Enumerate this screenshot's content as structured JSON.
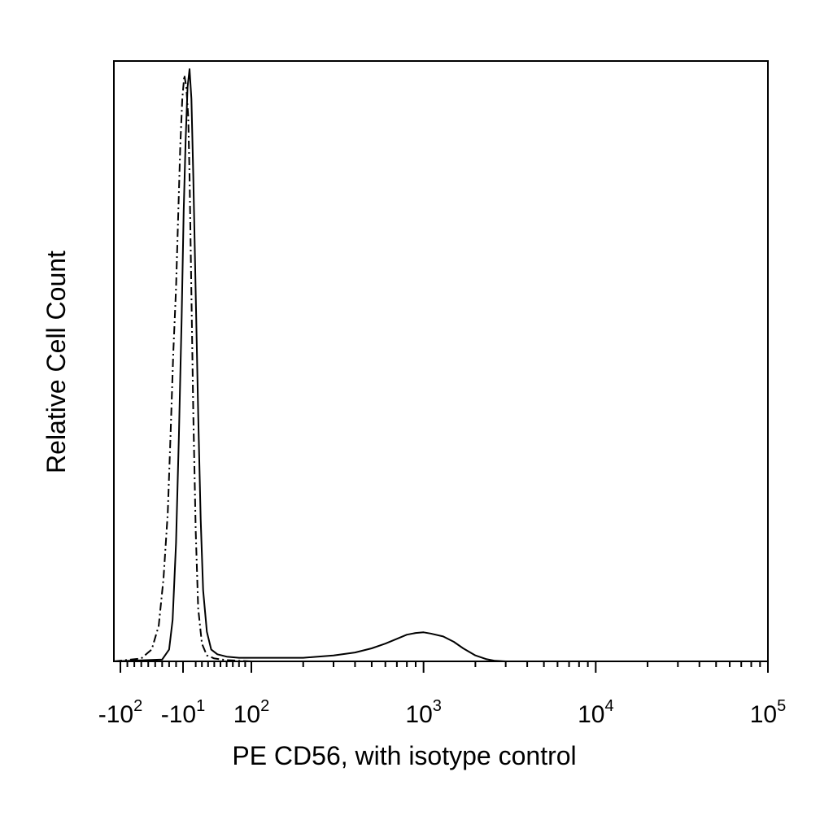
{
  "chart_data": {
    "type": "line",
    "title": "",
    "xlabel": "PE CD56, with isotype control",
    "ylabel": "Relative Cell Count",
    "x_scale": "biexponential",
    "xlim": [
      -150,
      100000
    ],
    "ylim": [
      0,
      1
    ],
    "grid": false,
    "x_tick_labels": [
      {
        "value": -100,
        "base": "-10",
        "exp": "2"
      },
      {
        "value": -10,
        "base": "-10",
        "exp": "1"
      },
      {
        "value": 100,
        "base": "10",
        "exp": "2"
      },
      {
        "value": 1000,
        "base": "10",
        "exp": "3"
      },
      {
        "value": 10000,
        "base": "10",
        "exp": "4"
      },
      {
        "value": 100000,
        "base": "10",
        "exp": "5"
      }
    ],
    "series": [
      {
        "style": "dash-dot",
        "x": [
          -150,
          -70,
          -55,
          -45,
          -38,
          -32,
          -28,
          -24,
          -20,
          -17,
          -14,
          -11,
          -8,
          -5,
          -2,
          0,
          3,
          6,
          10,
          14,
          20,
          28,
          40,
          60,
          100,
          300,
          1000,
          10000,
          100000
        ],
        "y": [
          0.0,
          0.005,
          0.02,
          0.06,
          0.14,
          0.25,
          0.38,
          0.52,
          0.63,
          0.75,
          0.87,
          0.95,
          0.99,
          0.97,
          0.92,
          0.82,
          0.62,
          0.42,
          0.22,
          0.09,
          0.03,
          0.01,
          0.005,
          0.002,
          0.0,
          0.0,
          0.0,
          0.0,
          0.0
        ]
      },
      {
        "style": "solid",
        "x": [
          -150,
          -40,
          -30,
          -25,
          -20,
          -16,
          -12,
          -9,
          -6,
          -3,
          0,
          3,
          6,
          10,
          14,
          18,
          22,
          28,
          35,
          45,
          60,
          80,
          100,
          150,
          200,
          300,
          400,
          500,
          600,
          700,
          800,
          900,
          1000,
          1100,
          1300,
          1500,
          1700,
          2000,
          2300,
          2600,
          3000,
          10000,
          100000
        ],
        "y": [
          0.0,
          0.003,
          0.02,
          0.07,
          0.2,
          0.38,
          0.58,
          0.76,
          0.88,
          0.97,
          1.0,
          0.95,
          0.82,
          0.62,
          0.42,
          0.24,
          0.12,
          0.05,
          0.02,
          0.012,
          0.008,
          0.006,
          0.006,
          0.006,
          0.006,
          0.01,
          0.015,
          0.022,
          0.03,
          0.038,
          0.045,
          0.048,
          0.049,
          0.047,
          0.042,
          0.033,
          0.022,
          0.01,
          0.004,
          0.001,
          0.0,
          0.0,
          0.0
        ]
      }
    ]
  }
}
